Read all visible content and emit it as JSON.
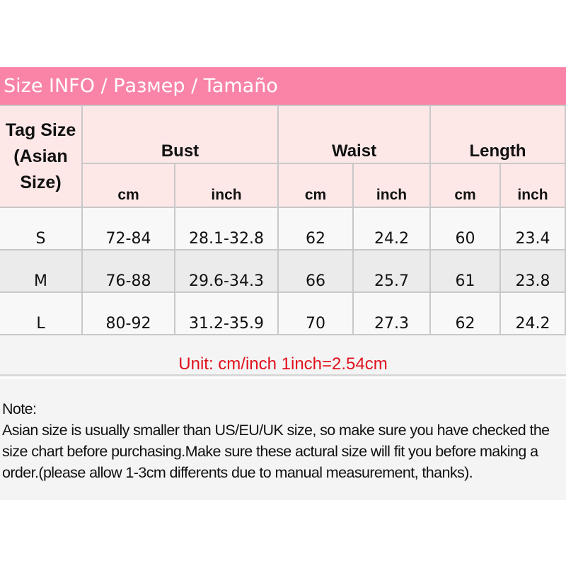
{
  "banner": {
    "title": "Size INFO / Размер / Tamaño"
  },
  "table": {
    "tag_header": "Tag Size (Asian Size)",
    "groups": [
      "Bust",
      "Waist",
      "Length"
    ],
    "units": [
      "cm",
      "inch",
      "cm",
      "inch",
      "cm",
      "inch"
    ],
    "rows": [
      {
        "size": "S",
        "values": [
          "72-84",
          "28.1-32.8",
          "62",
          "24.2",
          "60",
          "23.4"
        ]
      },
      {
        "size": "M",
        "values": [
          "76-88",
          "29.6-34.3",
          "66",
          "25.7",
          "61",
          "23.8"
        ]
      },
      {
        "size": "L",
        "values": [
          "80-92",
          "31.2-35.9",
          "70",
          "27.3",
          "62",
          "24.2"
        ]
      }
    ]
  },
  "unit_note": "Unit: cm/inch 1inch=2.54cm",
  "note": {
    "label": "Note:",
    "text": "Asian size is usually smaller than US/EU/UK size, so make sure you have checked the size chart before purchasing.Make sure these actural size will fit you before making a order.(please allow 1-3cm differents due to manual measurement, thanks)."
  },
  "colors": {
    "banner": "#f984a8",
    "header_bg": "#fde7e7",
    "unit_text": "#e0101c",
    "row_alt": "#ebebeb"
  }
}
